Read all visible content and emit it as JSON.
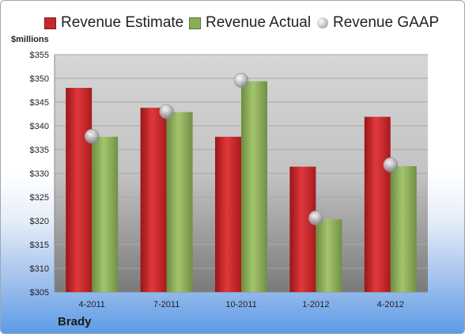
{
  "chart_data": {
    "type": "bar",
    "title": "",
    "xlabel": "",
    "ylabel": "$millions",
    "ylim": [
      305,
      355
    ],
    "yticks": [
      "$305",
      "$310",
      "$315",
      "$320",
      "$325",
      "$330",
      "$335",
      "$340",
      "$345",
      "$350",
      "$355"
    ],
    "categories": [
      "4-2011",
      "7-2011",
      "10-2011",
      "1-2012",
      "4-2012"
    ],
    "series": [
      {
        "name": "Revenue Estimate",
        "type": "bar",
        "color": "#c8282b",
        "values": [
          348.0,
          343.8,
          337.7,
          331.4,
          341.9
        ]
      },
      {
        "name": "Revenue Actual",
        "type": "bar",
        "color": "#8aae57",
        "values": [
          337.7,
          342.9,
          349.4,
          320.3,
          331.5
        ]
      },
      {
        "name": "Revenue GAAP",
        "type": "scatter",
        "color": "#b9bcc1",
        "values": [
          337.8,
          343.0,
          349.6,
          320.6,
          331.8
        ]
      }
    ],
    "grid": true,
    "legend_position": "top",
    "company": "Brady"
  }
}
